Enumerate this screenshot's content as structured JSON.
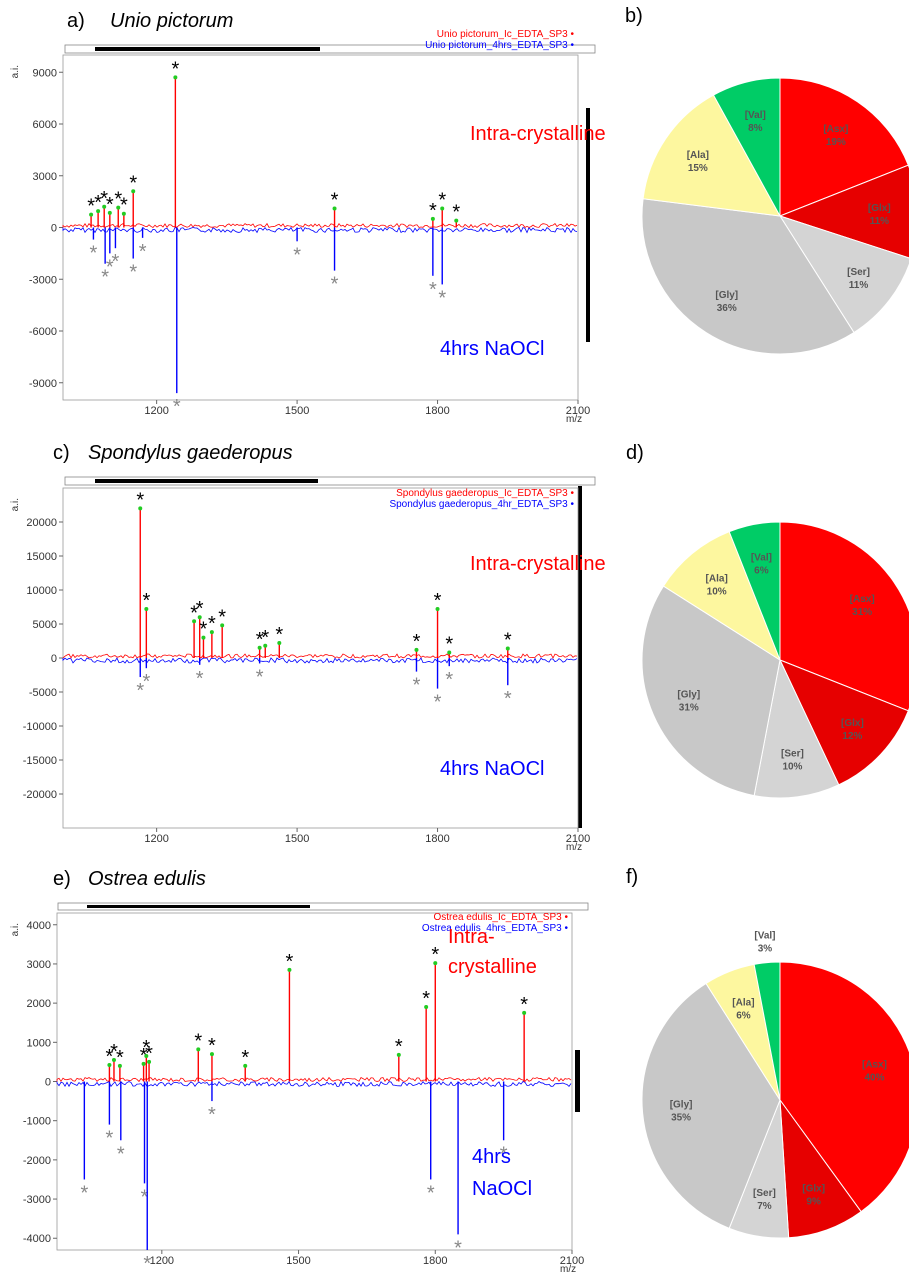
{
  "chart_data": [
    {
      "type": "line",
      "panel": "a)",
      "title": "Unio pictorum",
      "ylabel": "a.i.",
      "xlabel": "m/z",
      "xlim": [
        1000,
        2100
      ],
      "ylim": [
        -10000,
        10000
      ],
      "xticks": [
        1200,
        1500,
        1800,
        2100
      ],
      "yticks": [
        9000,
        6000,
        3000,
        0,
        -3000,
        -6000,
        -9000
      ],
      "series": [
        {
          "name": "Unio pictorum_Ic_EDTA_SP3",
          "color": "#ff0000",
          "peaks": [
            [
              1060,
              750
            ],
            [
              1075,
              950
            ],
            [
              1088,
              1200
            ],
            [
              1100,
              850
            ],
            [
              1118,
              1150
            ],
            [
              1130,
              800
            ],
            [
              1150,
              2100
            ],
            [
              1240,
              8700
            ],
            [
              1580,
              1100
            ],
            [
              1790,
              500
            ],
            [
              1810,
              1100
            ],
            [
              1840,
              400
            ]
          ]
        },
        {
          "name": "Unio pictorum_4hrs_EDTA_SP3",
          "color": "#0000ff",
          "peaks": [
            [
              1065,
              -700
            ],
            [
              1090,
              -2100
            ],
            [
              1100,
              -1500
            ],
            [
              1112,
              -1200
            ],
            [
              1150,
              -1800
            ],
            [
              1170,
              -600
            ],
            [
              1243,
              -9600
            ],
            [
              1500,
              -800
            ],
            [
              1580,
              -2500
            ],
            [
              1790,
              -2800
            ],
            [
              1810,
              -3300
            ]
          ]
        }
      ],
      "annotations": [
        {
          "text": "Intra-crystalline",
          "color": "#ff0000"
        },
        {
          "text": "4hrs NaOCl",
          "color": "#0000ff"
        }
      ],
      "peak_marker": "*"
    },
    {
      "type": "pie",
      "panel": "b)",
      "slices": [
        {
          "label": "[Asx]",
          "value": "19%",
          "pct": 19,
          "color": "#ff0000"
        },
        {
          "label": "[Glx]",
          "value": "11%",
          "pct": 11,
          "color": "#e60000"
        },
        {
          "label": "[Ser]",
          "value": "11%",
          "pct": 11,
          "color": "#d4d4d4"
        },
        {
          "label": "[Gly]",
          "value": "36%",
          "pct": 36,
          "color": "#c8c8c8"
        },
        {
          "label": "[Ala]",
          "value": "15%",
          "pct": 15,
          "color": "#fdf79f"
        },
        {
          "label": "[Val]",
          "value": "8%",
          "pct": 8,
          "color": "#00cc66"
        }
      ]
    },
    {
      "type": "line",
      "panel": "c)",
      "title": "Spondylus gaederopus",
      "ylabel": "a.i.",
      "xlabel": "m/z",
      "xlim": [
        1000,
        2100
      ],
      "ylim": [
        -25000,
        25000
      ],
      "xticks": [
        1200,
        1500,
        1800,
        2100
      ],
      "yticks": [
        20000,
        15000,
        10000,
        5000,
        0,
        -5000,
        -10000,
        -15000,
        -20000
      ],
      "series": [
        {
          "name": "Spondylus gaederopus_Ic_EDTA_SP3",
          "color": "#ff0000",
          "peaks": [
            [
              1165,
              22000
            ],
            [
              1178,
              7200
            ],
            [
              1280,
              5400
            ],
            [
              1292,
              6000
            ],
            [
              1300,
              3000
            ],
            [
              1318,
              3800
            ],
            [
              1340,
              4800
            ],
            [
              1420,
              1500
            ],
            [
              1432,
              1800
            ],
            [
              1462,
              2200
            ],
            [
              1800,
              7200
            ],
            [
              1755,
              1200
            ],
            [
              1825,
              800
            ],
            [
              1950,
              1400
            ]
          ]
        },
        {
          "name": "Spondylus gaederopus_4hr_EDTA_SP3",
          "color": "#0000ff",
          "peaks": [
            [
              1165,
              -2800
            ],
            [
              1178,
              -1500
            ],
            [
              1292,
              -1000
            ],
            [
              1420,
              -800
            ],
            [
              1755,
              -2000
            ],
            [
              1800,
              -4500
            ],
            [
              1825,
              -1200
            ],
            [
              1950,
              -4000
            ]
          ]
        }
      ],
      "annotations": [
        {
          "text": "Intra-crystalline",
          "color": "#ff0000"
        },
        {
          "text": "4hrs NaOCl",
          "color": "#0000ff"
        }
      ],
      "peak_marker": "*"
    },
    {
      "type": "pie",
      "panel": "d)",
      "slices": [
        {
          "label": "[Asx]",
          "value": "31%",
          "pct": 31,
          "color": "#ff0000"
        },
        {
          "label": "[Glx]",
          "value": "12%",
          "pct": 12,
          "color": "#e60000"
        },
        {
          "label": "[Ser]",
          "value": "10%",
          "pct": 10,
          "color": "#d4d4d4"
        },
        {
          "label": "[Gly]",
          "value": "31%",
          "pct": 31,
          "color": "#c8c8c8"
        },
        {
          "label": "[Ala]",
          "value": "10%",
          "pct": 10,
          "color": "#fdf79f"
        },
        {
          "label": "[Val]",
          "value": "6%",
          "pct": 6,
          "color": "#00cc66"
        }
      ]
    },
    {
      "type": "line",
      "panel": "e)",
      "title": "Ostrea edulis",
      "ylabel": "a.i.",
      "xlabel": "m/z",
      "xlim": [
        970,
        2100
      ],
      "ylim": [
        -4300,
        4300
      ],
      "xticks": [
        1200,
        1500,
        1800,
        2100
      ],
      "yticks": [
        4000,
        3000,
        2000,
        1000,
        0,
        -1000,
        -2000,
        -3000,
        -4000
      ],
      "series": [
        {
          "name": "Ostrea edulis_Ic_EDTA_SP3",
          "color": "#ff0000",
          "peaks": [
            [
              1085,
              420
            ],
            [
              1095,
              550
            ],
            [
              1108,
              400
            ],
            [
              1160,
              450
            ],
            [
              1166,
              650
            ],
            [
              1172,
              500
            ],
            [
              1280,
              820
            ],
            [
              1310,
              700
            ],
            [
              1383,
              400
            ],
            [
              1480,
              2850
            ],
            [
              1720,
              680
            ],
            [
              1780,
              1900
            ],
            [
              1800,
              3020
            ],
            [
              1995,
              1750
            ]
          ]
        },
        {
          "name": "Ostrea edulis_4hrs_EDTA_SP3",
          "color": "#0000ff",
          "peaks": [
            [
              1030,
              -2500
            ],
            [
              1085,
              -1100
            ],
            [
              1110,
              -1500
            ],
            [
              1162,
              -2600
            ],
            [
              1168,
              -4300
            ],
            [
              1310,
              -500
            ],
            [
              1790,
              -2500
            ],
            [
              1850,
              -3900
            ],
            [
              1950,
              -1500
            ]
          ]
        }
      ],
      "annotations": [
        {
          "text": "Intra-",
          "color": "#ff0000"
        },
        {
          "text": "crystalline",
          "color": "#ff0000"
        },
        {
          "text": "4hrs",
          "color": "#0000ff"
        },
        {
          "text": "NaOCl",
          "color": "#0000ff"
        }
      ],
      "peak_marker": "*"
    },
    {
      "type": "pie",
      "panel": "f)",
      "slices": [
        {
          "label": "[Asx]",
          "value": "40%",
          "pct": 40,
          "color": "#ff0000"
        },
        {
          "label": "[Glx]",
          "value": "9%",
          "pct": 9,
          "color": "#e60000"
        },
        {
          "label": "[Ser]",
          "value": "7%",
          "pct": 7,
          "color": "#d4d4d4"
        },
        {
          "label": "[Gly]",
          "value": "35%",
          "pct": 35,
          "color": "#c8c8c8"
        },
        {
          "label": "[Ala]",
          "value": "6%",
          "pct": 6,
          "color": "#fdf79f"
        },
        {
          "label": "[Val]",
          "value": "3%",
          "pct": 3,
          "color": "#00cc66"
        }
      ]
    }
  ]
}
